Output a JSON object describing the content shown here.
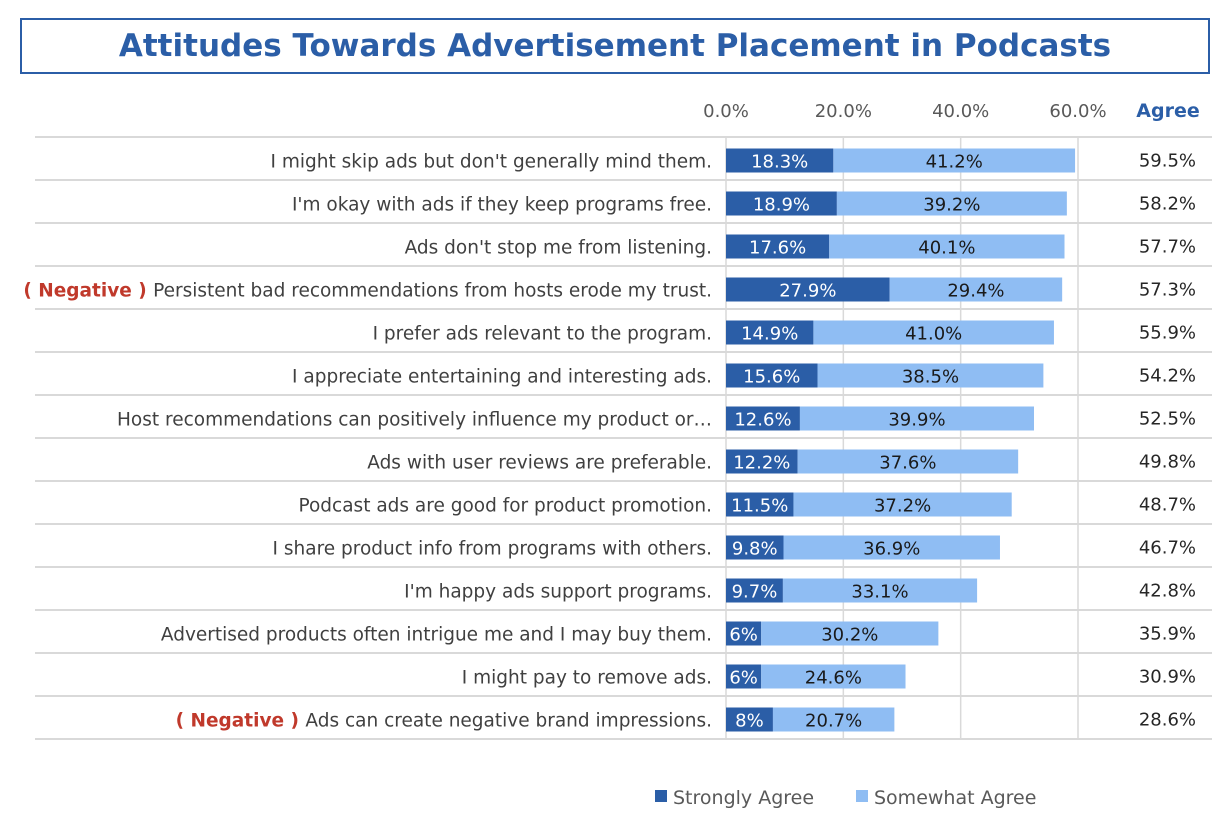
{
  "chart_data": {
    "type": "bar",
    "stacked": true,
    "orientation": "horizontal",
    "title": "Attitudes Towards Advertisement Placement in Podcasts",
    "x_ticks": [
      "0.0%",
      "20.0%",
      "40.0%",
      "60.0%"
    ],
    "xlim": [
      0,
      60
    ],
    "total_header": "Agree",
    "negative_tag": "( Negative )",
    "categories": [
      {
        "label": "I might skip ads but don't generally mind them.",
        "negative": false
      },
      {
        "label": "I'm okay with ads if they keep programs free.",
        "negative": false
      },
      {
        "label": "Ads don't stop me from listening.",
        "negative": false
      },
      {
        "label": "Persistent bad recommendations from hosts erode my trust.",
        "negative": true
      },
      {
        "label": "I prefer ads relevant to the program.",
        "negative": false
      },
      {
        "label": "I appreciate entertaining and interesting ads.",
        "negative": false
      },
      {
        "label": "Host recommendations can positively influence my product or…",
        "negative": false
      },
      {
        "label": "Ads with user reviews are preferable.",
        "negative": false
      },
      {
        "label": "Podcast ads are good for product promotion.",
        "negative": false
      },
      {
        "label": "I share product info from programs with others.",
        "negative": false
      },
      {
        "label": "I'm happy ads support programs.",
        "negative": false
      },
      {
        "label": "Advertised products often intrigue me and I may buy them.",
        "negative": false
      },
      {
        "label": "I might pay to remove ads.",
        "negative": false
      },
      {
        "label": "Ads can create negative brand impressions.",
        "negative": true
      }
    ],
    "series": [
      {
        "name": "Strongly Agree",
        "color": "#2b5ea7",
        "values": [
          18.3,
          18.9,
          17.6,
          27.9,
          14.9,
          15.6,
          12.6,
          12.2,
          11.5,
          9.8,
          9.7,
          6,
          6,
          8
        ],
        "labels": [
          "18.3%",
          "18.9%",
          "17.6%",
          "27.9%",
          "14.9%",
          "15.6%",
          "12.6%",
          "12.2%",
          "11.5%",
          "9.8%",
          "9.7%",
          "6%",
          "6%",
          "8%"
        ]
      },
      {
        "name": "Somewhat Agree",
        "color": "#8fbdf3",
        "values": [
          41.2,
          39.2,
          40.1,
          29.4,
          41.0,
          38.5,
          39.9,
          37.6,
          37.2,
          36.9,
          33.1,
          30.2,
          24.6,
          20.7
        ],
        "labels": [
          "41.2%",
          "39.2%",
          "40.1%",
          "29.4%",
          "41.0%",
          "38.5%",
          "39.9%",
          "37.6%",
          "37.2%",
          "36.9%",
          "33.1%",
          "30.2%",
          "24.6%",
          "20.7%"
        ]
      }
    ],
    "totals": [
      "59.5%",
      "58.2%",
      "57.7%",
      "57.3%",
      "55.9%",
      "54.2%",
      "52.5%",
      "49.8%",
      "48.7%",
      "46.7%",
      "42.8%",
      "35.9%",
      "30.9%",
      "28.6%"
    ],
    "legend_position": "bottom",
    "negative_color": "#c0392b",
    "header_color": "#2b5ea7"
  }
}
